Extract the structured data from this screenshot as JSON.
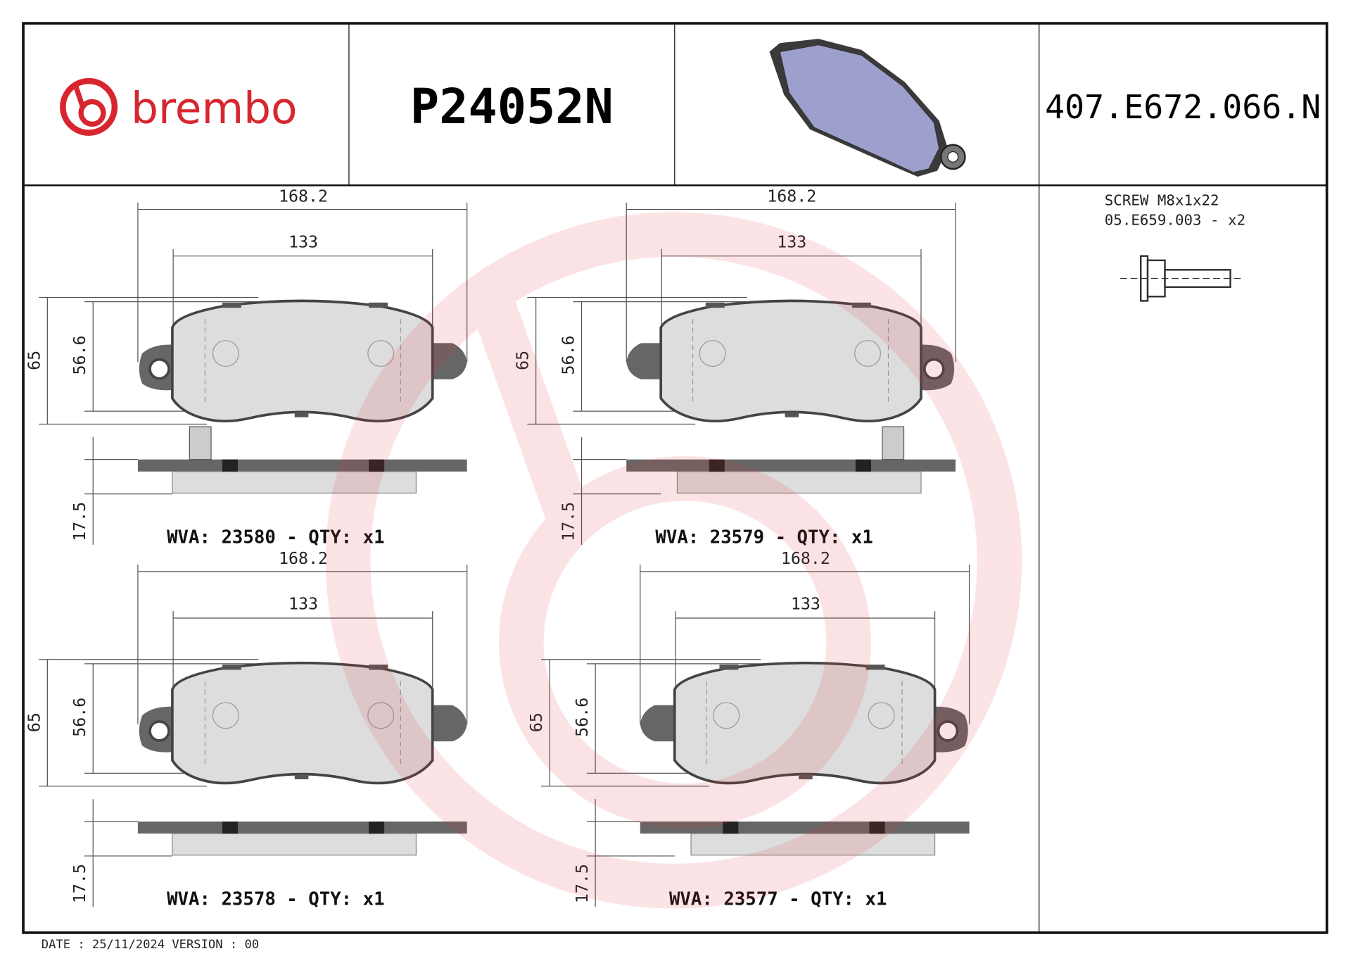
{
  "header": {
    "brand": "brembo",
    "part_number": "P24052N",
    "reference": "407.E672.066.N"
  },
  "accessory": {
    "name": "SCREW M8x1x22",
    "code": "05.E659.003 - x2"
  },
  "pads": [
    {
      "overall_width": 168.2,
      "hole_spacing": 133,
      "overall_height": 65,
      "friction_height": 56.6,
      "thickness": 17.5,
      "wva_label": "WVA: 23580 - QTY: x1"
    },
    {
      "overall_width": 168.2,
      "hole_spacing": 133,
      "overall_height": 65,
      "friction_height": 56.6,
      "thickness": 17.5,
      "wva_label": "WVA: 23579 - QTY: x1"
    },
    {
      "overall_width": 168.2,
      "hole_spacing": 133,
      "overall_height": 65,
      "friction_height": 56.6,
      "thickness": 17.5,
      "wva_label": "WVA: 23578 - QTY: x1"
    },
    {
      "overall_width": 168.2,
      "hole_spacing": 133,
      "overall_height": 65,
      "friction_height": 56.6,
      "thickness": 17.5,
      "wva_label": "WVA: 23577 - QTY: x1"
    }
  ],
  "footer": {
    "date": "DATE : 25/11/2024 VERSION : 00"
  }
}
